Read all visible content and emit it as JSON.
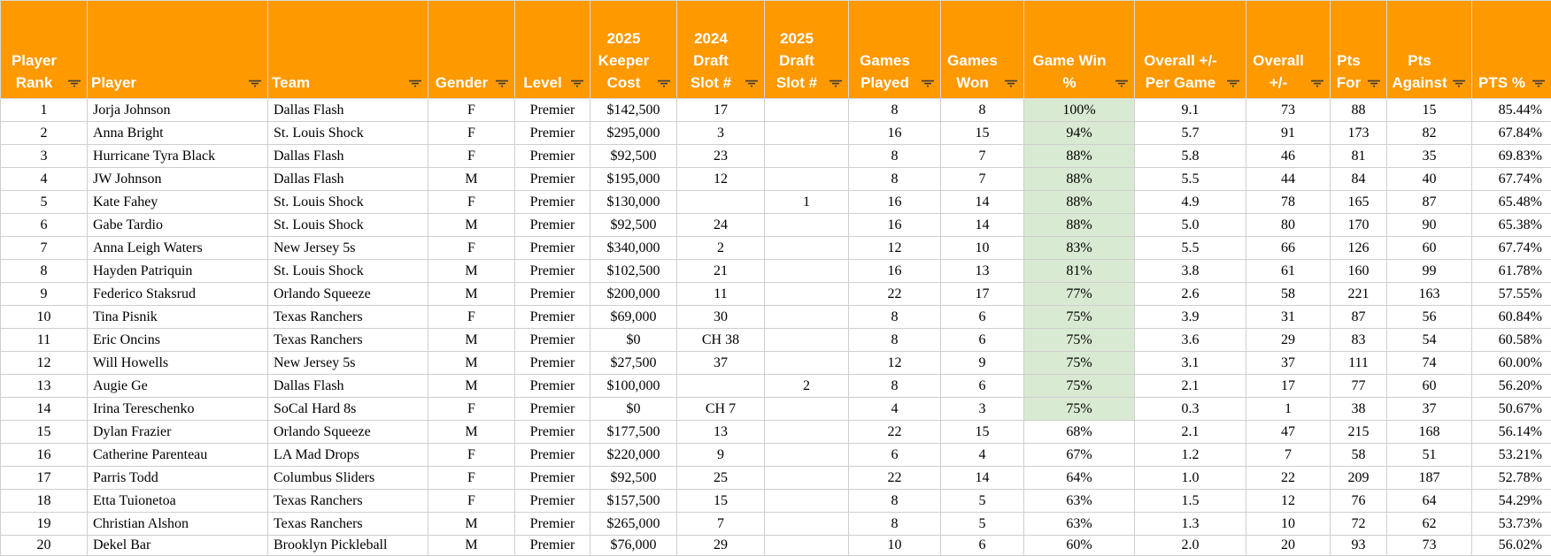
{
  "columns": [
    {
      "key": "rank",
      "label_lines": [
        "Player",
        "Rank"
      ]
    },
    {
      "key": "player",
      "label_lines": [
        "Player"
      ]
    },
    {
      "key": "team",
      "label_lines": [
        "Team"
      ]
    },
    {
      "key": "gender",
      "label_lines": [
        "Gender"
      ]
    },
    {
      "key": "level",
      "label_lines": [
        "Level"
      ]
    },
    {
      "key": "keeper_cost",
      "label_lines": [
        "2025",
        "Keeper",
        "Cost"
      ]
    },
    {
      "key": "draft_2024",
      "label_lines": [
        "2024",
        "Draft",
        "Slot #"
      ]
    },
    {
      "key": "draft_2025",
      "label_lines": [
        "2025",
        "Draft",
        "Slot #"
      ]
    },
    {
      "key": "games_played",
      "label_lines": [
        "Games",
        "Played"
      ]
    },
    {
      "key": "games_won",
      "label_lines": [
        "Games",
        "Won"
      ]
    },
    {
      "key": "game_win_pct",
      "label_lines": [
        "Game Win",
        "%"
      ]
    },
    {
      "key": "pm_per_game",
      "label_lines": [
        "Overall +/-",
        "Per Game"
      ]
    },
    {
      "key": "overall_pm",
      "label_lines": [
        "Overall",
        "+/-"
      ]
    },
    {
      "key": "pts_for",
      "label_lines": [
        "Pts",
        "For"
      ]
    },
    {
      "key": "pts_against",
      "label_lines": [
        "Pts",
        "Against"
      ]
    },
    {
      "key": "pts_pct",
      "label_lines": [
        "PTS %"
      ]
    }
  ],
  "colors": {
    "header_bg": "#ff9900",
    "header_text": "#ffffff",
    "win_highlight": "#d9ead3",
    "grid": "#cfcfcf"
  },
  "icons": {
    "column_filter": "filter-icon"
  },
  "rows": [
    [
      "1",
      "Jorja Johnson",
      "Dallas Flash",
      "F",
      "Premier",
      "$142,500",
      "17",
      "",
      "8",
      "8",
      "100%",
      "9.1",
      "73",
      "88",
      "15",
      "85.44%"
    ],
    [
      "2",
      "Anna Bright",
      "St. Louis Shock",
      "F",
      "Premier",
      "$295,000",
      "3",
      "",
      "16",
      "15",
      "94%",
      "5.7",
      "91",
      "173",
      "82",
      "67.84%"
    ],
    [
      "3",
      "Hurricane Tyra Black",
      "Dallas Flash",
      "F",
      "Premier",
      "$92,500",
      "23",
      "",
      "8",
      "7",
      "88%",
      "5.8",
      "46",
      "81",
      "35",
      "69.83%"
    ],
    [
      "4",
      "JW Johnson",
      "Dallas Flash",
      "M",
      "Premier",
      "$195,000",
      "12",
      "",
      "8",
      "7",
      "88%",
      "5.5",
      "44",
      "84",
      "40",
      "67.74%"
    ],
    [
      "5",
      "Kate Fahey",
      "St. Louis Shock",
      "F",
      "Premier",
      "$130,000",
      "",
      "1",
      "16",
      "14",
      "88%",
      "4.9",
      "78",
      "165",
      "87",
      "65.48%"
    ],
    [
      "6",
      "Gabe Tardio",
      "St. Louis Shock",
      "M",
      "Premier",
      "$92,500",
      "24",
      "",
      "16",
      "14",
      "88%",
      "5.0",
      "80",
      "170",
      "90",
      "65.38%"
    ],
    [
      "7",
      "Anna Leigh Waters",
      "New Jersey 5s",
      "F",
      "Premier",
      "$340,000",
      "2",
      "",
      "12",
      "10",
      "83%",
      "5.5",
      "66",
      "126",
      "60",
      "67.74%"
    ],
    [
      "8",
      "Hayden Patriquin",
      "St. Louis Shock",
      "M",
      "Premier",
      "$102,500",
      "21",
      "",
      "16",
      "13",
      "81%",
      "3.8",
      "61",
      "160",
      "99",
      "61.78%"
    ],
    [
      "9",
      "Federico Staksrud",
      "Orlando Squeeze",
      "M",
      "Premier",
      "$200,000",
      "11",
      "",
      "22",
      "17",
      "77%",
      "2.6",
      "58",
      "221",
      "163",
      "57.55%"
    ],
    [
      "10",
      "Tina Pisnik",
      "Texas Ranchers",
      "F",
      "Premier",
      "$69,000",
      "30",
      "",
      "8",
      "6",
      "75%",
      "3.9",
      "31",
      "87",
      "56",
      "60.84%"
    ],
    [
      "11",
      "Eric Oncins",
      "Texas Ranchers",
      "M",
      "Premier",
      "$0",
      "CH 38",
      "",
      "8",
      "6",
      "75%",
      "3.6",
      "29",
      "83",
      "54",
      "60.58%"
    ],
    [
      "12",
      "Will Howells",
      "New Jersey 5s",
      "M",
      "Premier",
      "$27,500",
      "37",
      "",
      "12",
      "9",
      "75%",
      "3.1",
      "37",
      "111",
      "74",
      "60.00%"
    ],
    [
      "13",
      "Augie Ge",
      "Dallas Flash",
      "M",
      "Premier",
      "$100,000",
      "",
      "2",
      "8",
      "6",
      "75%",
      "2.1",
      "17",
      "77",
      "60",
      "56.20%"
    ],
    [
      "14",
      "Irina Tereschenko",
      "SoCal Hard 8s",
      "F",
      "Premier",
      "$0",
      "CH 7",
      "",
      "4",
      "3",
      "75%",
      "0.3",
      "1",
      "38",
      "37",
      "50.67%"
    ],
    [
      "15",
      "Dylan Frazier",
      "Orlando Squeeze",
      "M",
      "Premier",
      "$177,500",
      "13",
      "",
      "22",
      "15",
      "68%",
      "2.1",
      "47",
      "215",
      "168",
      "56.14%"
    ],
    [
      "16",
      "Catherine Parenteau",
      "LA Mad Drops",
      "F",
      "Premier",
      "$220,000",
      "9",
      "",
      "6",
      "4",
      "67%",
      "1.2",
      "7",
      "58",
      "51",
      "53.21%"
    ],
    [
      "17",
      "Parris Todd",
      "Columbus Sliders",
      "F",
      "Premier",
      "$92,500",
      "25",
      "",
      "22",
      "14",
      "64%",
      "1.0",
      "22",
      "209",
      "187",
      "52.78%"
    ],
    [
      "18",
      "Etta Tuionetoa",
      "Texas Ranchers",
      "F",
      "Premier",
      "$157,500",
      "15",
      "",
      "8",
      "5",
      "63%",
      "1.5",
      "12",
      "76",
      "64",
      "54.29%"
    ],
    [
      "19",
      "Christian Alshon",
      "Texas Ranchers",
      "M",
      "Premier",
      "$265,000",
      "7",
      "",
      "8",
      "5",
      "63%",
      "1.3",
      "10",
      "72",
      "62",
      "53.73%"
    ],
    [
      "20",
      "Dekel Bar",
      "Brooklyn Pickleball",
      "M",
      "Premier",
      "$76,000",
      "29",
      "",
      "10",
      "6",
      "60%",
      "2.0",
      "20",
      "93",
      "73",
      "56.02%"
    ]
  ]
}
